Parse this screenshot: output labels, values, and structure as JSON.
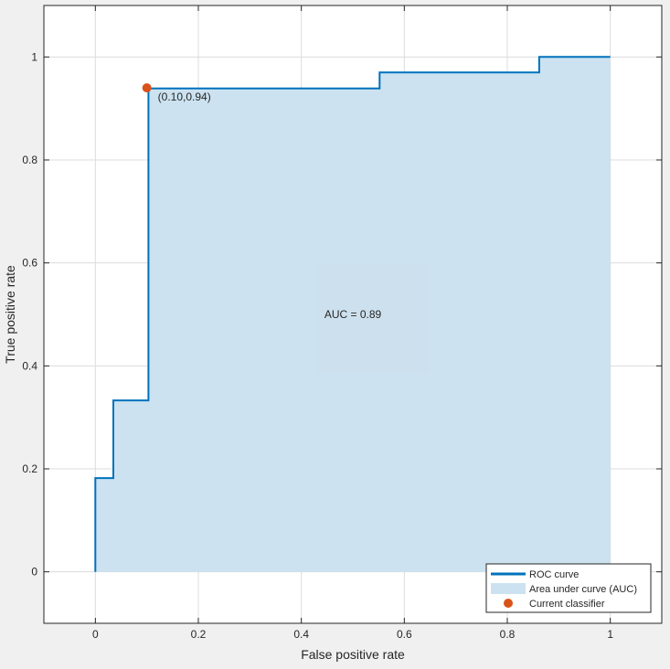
{
  "chart_data": {
    "type": "line",
    "xlabel": "False positive rate",
    "ylabel": "True positive rate",
    "xlim": [
      -0.1,
      1.1
    ],
    "ylim": [
      -0.1,
      1.1
    ],
    "x_ticks": [
      0,
      0.2,
      0.4,
      0.6,
      0.8,
      1
    ],
    "y_ticks": [
      0,
      0.2,
      0.4,
      0.6,
      0.8,
      1
    ],
    "x_tick_labels": [
      "0",
      "0.2",
      "0.4",
      "0.6",
      "0.8",
      "1"
    ],
    "y_tick_labels": [
      "0",
      "0.2",
      "0.4",
      "0.6",
      "0.8",
      "1"
    ],
    "grid": true,
    "series": [
      {
        "name": "ROC curve",
        "x": [
          0,
          0,
          0.035,
          0.035,
          0.103,
          0.103,
          0.552,
          0.552,
          0.862,
          0.862,
          1
        ],
        "y": [
          0,
          0.182,
          0.182,
          0.333,
          0.333,
          0.939,
          0.939,
          0.97,
          0.97,
          1,
          1
        ],
        "color": "#0072BD"
      }
    ],
    "area": {
      "name": "Area under curve (AUC)",
      "color": "#CCE2F0"
    },
    "point": {
      "name": "Current classifier",
      "x": 0.1,
      "y": 0.94,
      "label": "(0.10,0.94)",
      "color": "#D95319"
    },
    "annotation": {
      "text": "AUC = 0.89",
      "x": 0.5,
      "y": 0.5
    },
    "legend_location": "bottom-right",
    "legend": [
      "ROC curve",
      "Area under curve (AUC)",
      "Current classifier"
    ]
  }
}
